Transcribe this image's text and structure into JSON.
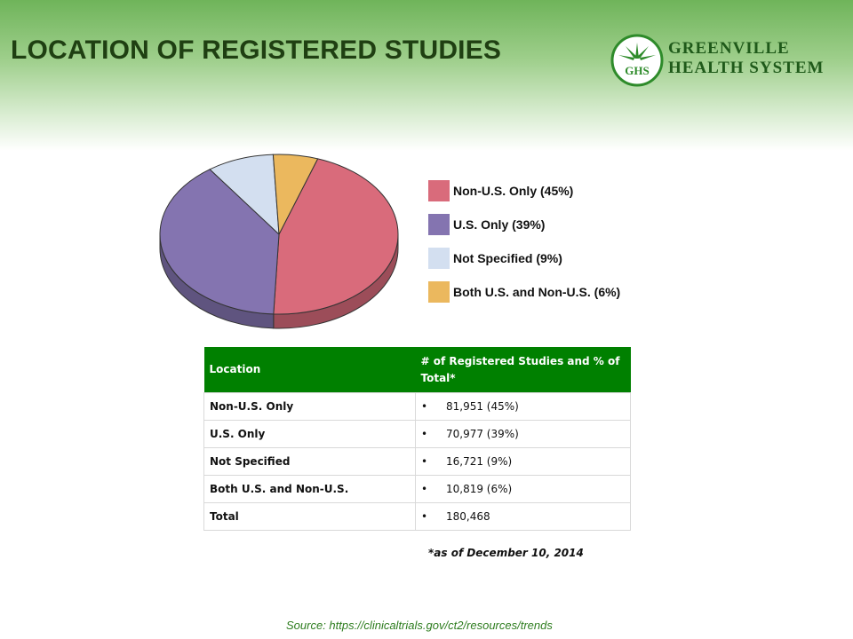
{
  "slide": {
    "title": "LOCATION OF REGISTERED STUDIES",
    "logo": {
      "monogram": "GHS",
      "line1": "GREENVILLE",
      "line2": "HEALTH SYSTEM"
    },
    "footnote": "*as of December 10, 2014",
    "source": "Source: https://clinicaltrials.gov/ct2/resources/trends"
  },
  "chart_data": {
    "type": "pie",
    "title": "",
    "slices": [
      {
        "label": "Non-U.S. Only (45%)",
        "value": 45,
        "color": "#d96b7b"
      },
      {
        "label": "U.S. Only (39%)",
        "value": 39,
        "color": "#8474b0"
      },
      {
        "label": "Not Specified (9%)",
        "value": 9,
        "color": "#d3dff0"
      },
      {
        "label": "Both U.S. and Non-U.S. (6%)",
        "value": 6,
        "color": "#ebb85e"
      }
    ],
    "legend": "right",
    "style": "3d-tilted"
  },
  "table": {
    "headers": [
      "Location",
      "# of Registered Studies and % of Total*"
    ],
    "rows": [
      [
        "Non-U.S. Only",
        "81,951 (45%)"
      ],
      [
        "U.S. Only",
        "70,977 (39%)"
      ],
      [
        "Not Specified",
        "16,721 (9%)"
      ],
      [
        "Both U.S. and Non-U.S.",
        "10,819 (6%)"
      ],
      [
        "Total",
        "180,468"
      ]
    ],
    "header_color": "#008000"
  }
}
